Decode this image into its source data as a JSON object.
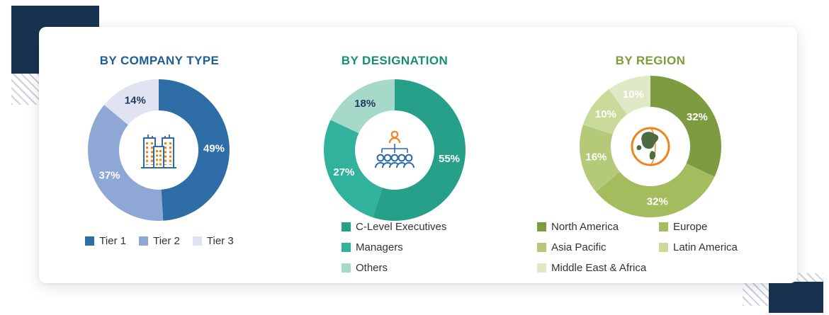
{
  "page": {
    "decor_navy": "#17334f"
  },
  "chart_data": [
    {
      "type": "donut",
      "title": "BY COMPANY TYPE",
      "title_color": "#1b5d95",
      "center_icon": "buildings-icon",
      "legend_layout": "row",
      "unit": "%",
      "segments": [
        {
          "label": "Tier 1",
          "value": 49,
          "color": "#2f6da6",
          "label_color": "#ffffff"
        },
        {
          "label": "Tier 2",
          "value": 37,
          "color": "#8ea7d4",
          "label_color": "#ffffff"
        },
        {
          "label": "Tier 3",
          "value": 14,
          "color": "#dfe3f2",
          "label_color": "#1e3a5c"
        }
      ]
    },
    {
      "type": "donut",
      "title": "BY DESIGNATION",
      "title_color": "#168f6e",
      "center_icon": "org-chart-icon",
      "legend_layout": "column",
      "unit": "%",
      "segments": [
        {
          "label": "C-Level Executives",
          "value": 55,
          "color": "#27a08a",
          "label_color": "#ffffff"
        },
        {
          "label": "Managers",
          "value": 27,
          "color": "#31b29c",
          "label_color": "#ffffff"
        },
        {
          "label": "Others",
          "value": 18,
          "color": "#a6d9c9",
          "label_color": "#1e3a5c"
        }
      ]
    },
    {
      "type": "donut",
      "title": "BY REGION",
      "title_color": "#7e9c3b",
      "center_icon": "globe-icon",
      "legend_layout": "grid",
      "unit": "%",
      "segments": [
        {
          "label": "North America",
          "value": 32,
          "color": "#7d9b40",
          "label_color": "#ffffff"
        },
        {
          "label": "Europe",
          "value": 32,
          "color": "#a3bd5e",
          "label_color": "#ffffff"
        },
        {
          "label": "Asia Pacific",
          "value": 16,
          "color": "#b4ca78",
          "label_color": "#ffffff"
        },
        {
          "label": "Latin America",
          "value": 10,
          "color": "#c9da9b",
          "label_color": "#ffffff"
        },
        {
          "label": "Middle East & Africa",
          "value": 10,
          "color": "#dfe9c5",
          "label_color": "#ffffff"
        }
      ]
    }
  ]
}
